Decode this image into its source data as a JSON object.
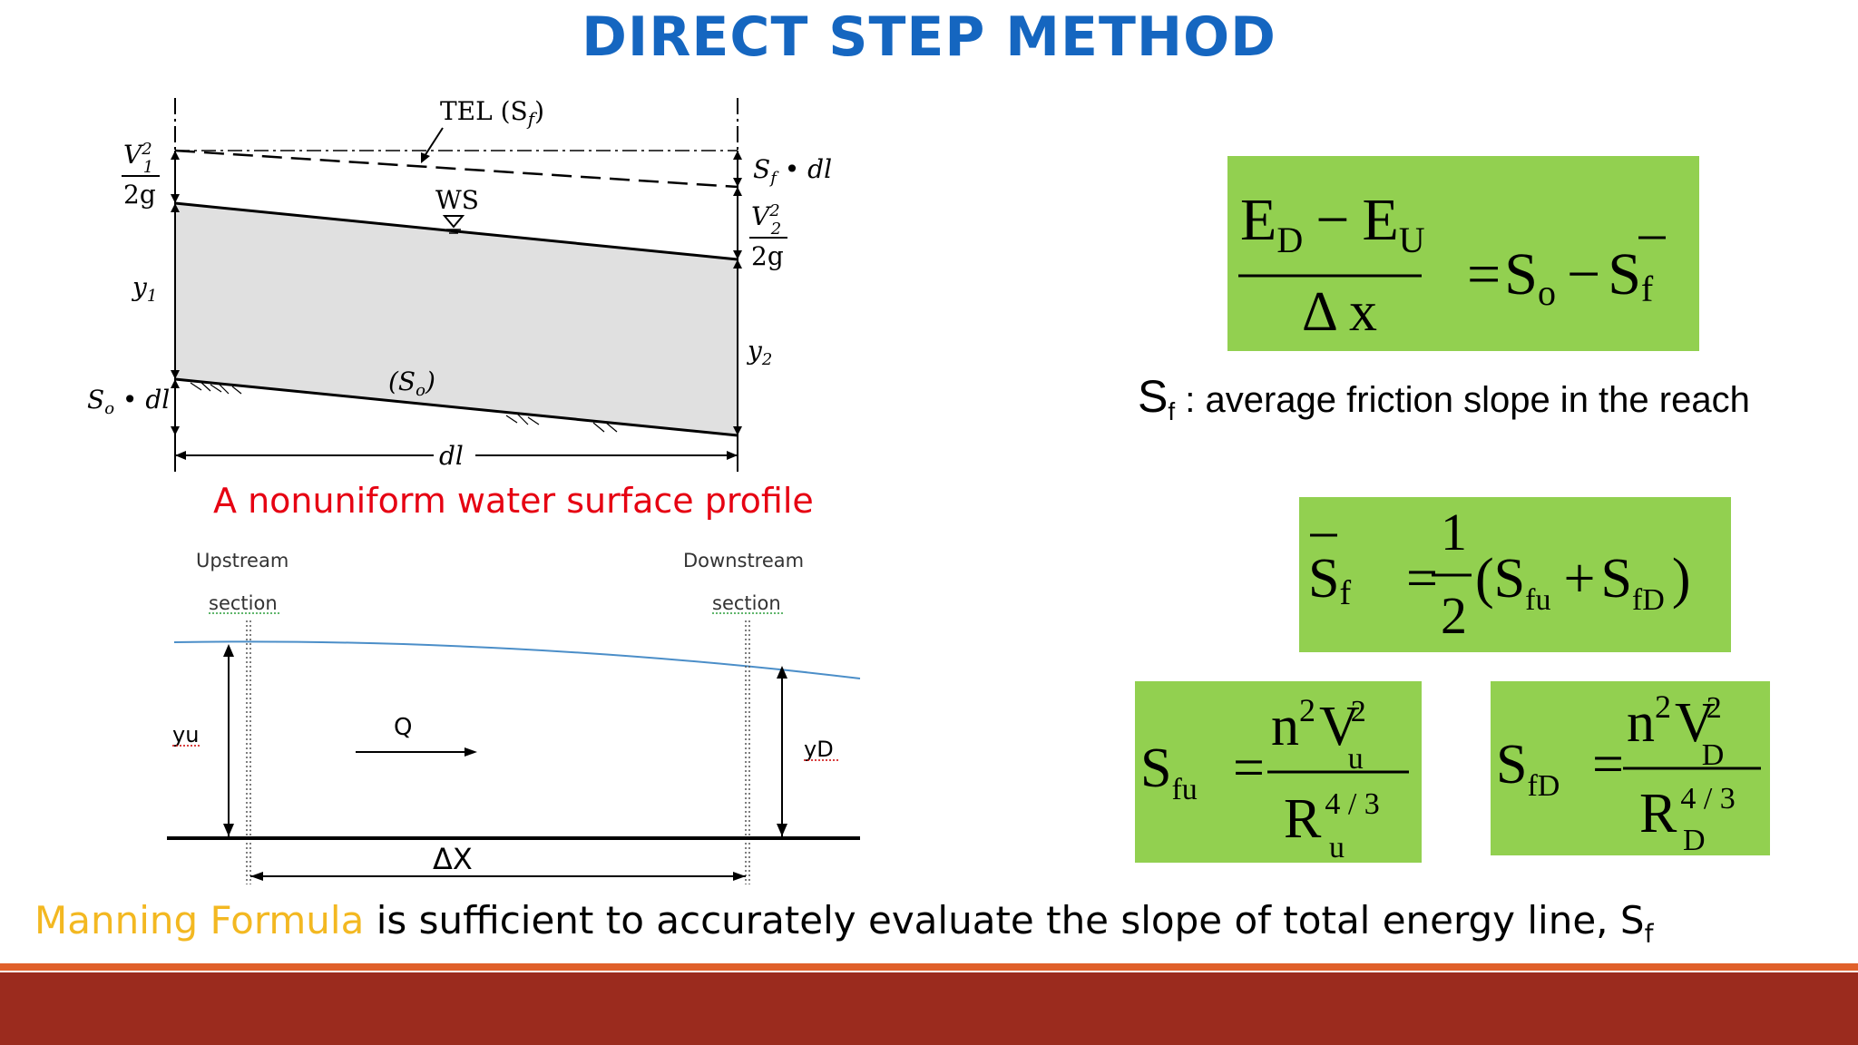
{
  "slide": {
    "title": "DIRECT STEP METHOD",
    "caption": "A nonuniform water surface profile",
    "note_symbol": "S",
    "note_sub": "f",
    "note_text": " : average friction slope in the reach",
    "bottom_highlight": "Manning Formula",
    "bottom_text": " is sufficient to accurately evaluate the slope of total energy line, S",
    "bottom_sub": "f"
  },
  "diagram1": {
    "tel_label": "TEL (S",
    "tel_sub": "f",
    "tel_close": ")",
    "ws_label": "WS",
    "v1_num": "V",
    "v1_sup": "2",
    "v1_sub": "1",
    "v1_den": "2g",
    "v2_num": "V",
    "v2_sup": "2",
    "v2_sub": "2",
    "v2_den": "2g",
    "sf_dl": "S",
    "sf_dl_sub": "f",
    "sf_dl_rest": " • dl",
    "y1": "y",
    "y1_sub": "1",
    "y2": "y",
    "y2_sub": "2",
    "so_dl": "S",
    "so_dl_sub": "o",
    "so_dl_rest": " • dl",
    "so": "(S",
    "so_sub": "o",
    "so_close": ")",
    "dl": "dl"
  },
  "diagram2": {
    "upstream": "Upstream",
    "upstream_section": "section",
    "downstream": "Downstream",
    "downstream_section": "section",
    "yu": "yu",
    "yd": "yD",
    "q": "Q",
    "dx": "ΔX"
  },
  "equations": {
    "eq1": {
      "ed": "E",
      "ed_sub": "D",
      "minus": "−",
      "eu": "E",
      "eu_sub": "U",
      "den": "Δ x",
      "eq": "=",
      "s": "S",
      "s_sub": "o",
      "minus2": "−",
      "sf": "S",
      "sf_sub": "f"
    },
    "eq2": {
      "sf": "S",
      "sf_sub": "f",
      "eq": "=",
      "num": "1",
      "den": "2",
      "open": "(S",
      "fu": "fu",
      "plus": "+",
      "s2": "S",
      "fd": "fD",
      "close": ")"
    },
    "eq3": {
      "s": "S",
      "sub": "fu",
      "eq": "=",
      "n": "n",
      "two": "2",
      "v": "V",
      "vsup": "2",
      "vsub": "u",
      "r": "R",
      "rsup": "4 / 3",
      "rsub": "u"
    },
    "eq4": {
      "s": "S",
      "sub": "fD",
      "eq": "=",
      "n": "n",
      "two": "2",
      "v": "V",
      "vsup": "2",
      "vsub": "D",
      "r": "R",
      "rsup": "4 / 3",
      "rsub": "D"
    }
  },
  "colors": {
    "title": "#1566c0",
    "caption": "#e60012",
    "box": "#92d050",
    "highlight": "#f3b821",
    "footer": "#9b2b1e",
    "stripe": "#e0602a"
  }
}
